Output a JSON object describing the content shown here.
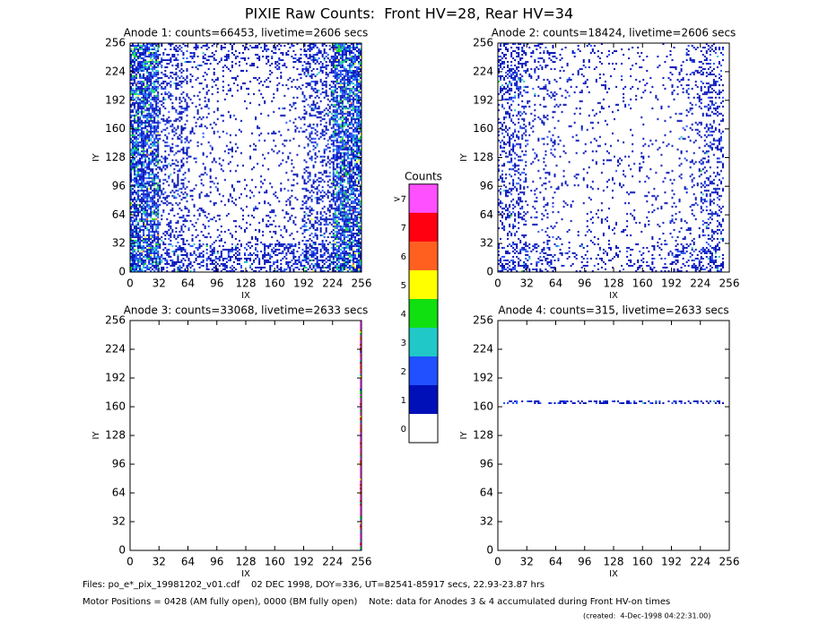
{
  "title": "PIXIE Raw Counts:  Front HV=28, Rear HV=34",
  "chart_data": [
    {
      "type": "heatmap",
      "title": "Anode 1: counts=66453, livetime=2606 secs",
      "xlabel": "IX",
      "ylabel": "IY",
      "xlim": [
        0,
        256
      ],
      "ylim": [
        0,
        256
      ],
      "xticks": [
        0,
        32,
        64,
        96,
        128,
        160,
        192,
        224,
        256
      ],
      "yticks": [
        0,
        32,
        64,
        96,
        128,
        160,
        192,
        224,
        256
      ],
      "x_bins": [
        0,
        32,
        64,
        96,
        128,
        160,
        192,
        224,
        256
      ],
      "y_bins": [
        0,
        32,
        64,
        96,
        128,
        160,
        192,
        224,
        256
      ],
      "values": [
        [
          1.5,
          0.6,
          0.45,
          0.45,
          0.45,
          0.45,
          0.7,
          1.5
        ],
        [
          1.4,
          0.35,
          0.15,
          0.12,
          0.12,
          0.15,
          0.4,
          1.4
        ],
        [
          1.3,
          0.3,
          0.12,
          0.08,
          0.08,
          0.12,
          0.35,
          1.3
        ],
        [
          1.3,
          0.3,
          0.12,
          0.08,
          0.08,
          0.12,
          0.35,
          1.3
        ],
        [
          1.3,
          0.3,
          0.12,
          0.08,
          0.08,
          0.12,
          0.35,
          1.3
        ],
        [
          1.3,
          0.3,
          0.12,
          0.08,
          0.08,
          0.12,
          0.35,
          1.3
        ],
        [
          1.4,
          0.35,
          0.15,
          0.1,
          0.1,
          0.15,
          0.4,
          1.4
        ],
        [
          1.5,
          0.4,
          0.25,
          0.2,
          0.2,
          0.25,
          0.5,
          1.5
        ]
      ]
    },
    {
      "type": "heatmap",
      "title": "Anode 2: counts=18424, livetime=2606 secs",
      "xlabel": "IX",
      "ylabel": "IY",
      "xlim": [
        0,
        256
      ],
      "ylim": [
        0,
        256
      ],
      "xticks": [
        0,
        32,
        64,
        96,
        128,
        160,
        192,
        224,
        256
      ],
      "yticks": [
        0,
        32,
        64,
        96,
        128,
        160,
        192,
        224,
        256
      ],
      "x_bins": [
        0,
        32,
        64,
        96,
        128,
        160,
        192,
        224,
        250,
        256
      ],
      "y_bins": [
        0,
        32,
        64,
        96,
        128,
        160,
        192,
        224,
        256
      ],
      "values": [
        [
          0.6,
          0.35,
          0.2,
          0.15,
          0.15,
          0.2,
          0.3,
          0.5,
          0
        ],
        [
          0.35,
          0.12,
          0.06,
          0.06,
          0.06,
          0.06,
          0.12,
          0.3,
          0
        ],
        [
          0.35,
          0.12,
          0.06,
          0.06,
          0.06,
          0.06,
          0.12,
          0.3,
          0
        ],
        [
          0.35,
          0.12,
          0.06,
          0.06,
          0.06,
          0.06,
          0.12,
          0.3,
          0
        ],
        [
          0.35,
          0.12,
          0.06,
          0.06,
          0.06,
          0.06,
          0.12,
          0.3,
          0
        ],
        [
          0.35,
          0.12,
          0.06,
          0.06,
          0.06,
          0.06,
          0.12,
          0.3,
          0
        ],
        [
          0.5,
          0.15,
          0.08,
          0.07,
          0.07,
          0.08,
          0.15,
          0.35,
          0
        ],
        [
          0.5,
          0.2,
          0.1,
          0.1,
          0.1,
          0.1,
          0.15,
          0.3,
          0
        ]
      ]
    },
    {
      "type": "heatmap",
      "title": "Anode 3: counts=33068, livetime=2633 secs",
      "xlabel": "IX",
      "ylabel": "IY",
      "xlim": [
        0,
        256
      ],
      "ylim": [
        0,
        256
      ],
      "xticks": [
        0,
        32,
        64,
        96,
        128,
        160,
        192,
        224,
        256
      ],
      "yticks": [
        0,
        32,
        64,
        96,
        128,
        160,
        192,
        224,
        256
      ],
      "x_bins": [
        0,
        254,
        256
      ],
      "y_bins": [
        0,
        256
      ],
      "values": [
        [
          0,
          8
        ]
      ]
    },
    {
      "type": "heatmap",
      "title": "Anode 4: counts=315, livetime=2633 secs",
      "xlabel": "IX",
      "ylabel": "IY",
      "xlim": [
        0,
        256
      ],
      "ylim": [
        0,
        256
      ],
      "xticks": [
        0,
        32,
        64,
        96,
        128,
        160,
        192,
        224,
        256
      ],
      "yticks": [
        0,
        32,
        64,
        96,
        128,
        160,
        192,
        224,
        256
      ],
      "x_bins": [
        0,
        250,
        256
      ],
      "y_bins": [
        0,
        163,
        167,
        256
      ],
      "values": [
        [
          0,
          0
        ],
        [
          0.5,
          0
        ],
        [
          0,
          0
        ]
      ]
    }
  ],
  "colorbar": {
    "title": "Counts",
    "levels": [
      0,
      1,
      2,
      3,
      4,
      5,
      6,
      7,
      {
        "value": 8,
        "label": ">7"
      }
    ],
    "colors": [
      "#ffffff",
      "#0010b8",
      "#2050ff",
      "#20c8c8",
      "#10e010",
      "#ffff00",
      "#ff6020",
      "#ff0010",
      "#ff50ff"
    ]
  },
  "footer": {
    "files": "Files: po_e*_pix_19981202_v01.cdf    02 DEC 1998, DOY=336, UT=82541-85917 secs, 22.93-23.87 hrs",
    "motor": "Motor Positions = 0428 (AM fully open), 0000 (BM fully open)    Note: data for Anodes 3 & 4 accumulated during Front HV-on times",
    "created": "(created:  4-Dec-1998 04:22:31.00)"
  }
}
